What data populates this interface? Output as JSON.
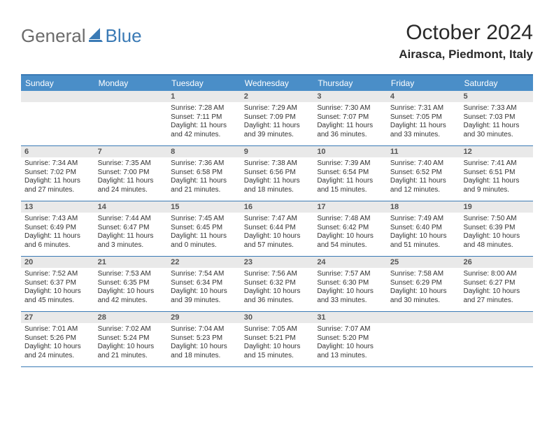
{
  "logo": {
    "text1": "General",
    "text2": "Blue"
  },
  "title": "October 2024",
  "location": "Airasca, Piedmont, Italy",
  "colors": {
    "accent": "#3a7ab5",
    "header_bg": "#4a8ec8",
    "daynum_bg": "#e9e9e9",
    "text": "#333333",
    "logo_gray": "#6b6b6b"
  },
  "day_labels": [
    "Sunday",
    "Monday",
    "Tuesday",
    "Wednesday",
    "Thursday",
    "Friday",
    "Saturday"
  ],
  "weeks": [
    [
      {
        "n": "",
        "sunrise": "",
        "sunset": "",
        "daylight": ""
      },
      {
        "n": "",
        "sunrise": "",
        "sunset": "",
        "daylight": ""
      },
      {
        "n": "1",
        "sunrise": "Sunrise: 7:28 AM",
        "sunset": "Sunset: 7:11 PM",
        "daylight": "Daylight: 11 hours and 42 minutes."
      },
      {
        "n": "2",
        "sunrise": "Sunrise: 7:29 AM",
        "sunset": "Sunset: 7:09 PM",
        "daylight": "Daylight: 11 hours and 39 minutes."
      },
      {
        "n": "3",
        "sunrise": "Sunrise: 7:30 AM",
        "sunset": "Sunset: 7:07 PM",
        "daylight": "Daylight: 11 hours and 36 minutes."
      },
      {
        "n": "4",
        "sunrise": "Sunrise: 7:31 AM",
        "sunset": "Sunset: 7:05 PM",
        "daylight": "Daylight: 11 hours and 33 minutes."
      },
      {
        "n": "5",
        "sunrise": "Sunrise: 7:33 AM",
        "sunset": "Sunset: 7:03 PM",
        "daylight": "Daylight: 11 hours and 30 minutes."
      }
    ],
    [
      {
        "n": "6",
        "sunrise": "Sunrise: 7:34 AM",
        "sunset": "Sunset: 7:02 PM",
        "daylight": "Daylight: 11 hours and 27 minutes."
      },
      {
        "n": "7",
        "sunrise": "Sunrise: 7:35 AM",
        "sunset": "Sunset: 7:00 PM",
        "daylight": "Daylight: 11 hours and 24 minutes."
      },
      {
        "n": "8",
        "sunrise": "Sunrise: 7:36 AM",
        "sunset": "Sunset: 6:58 PM",
        "daylight": "Daylight: 11 hours and 21 minutes."
      },
      {
        "n": "9",
        "sunrise": "Sunrise: 7:38 AM",
        "sunset": "Sunset: 6:56 PM",
        "daylight": "Daylight: 11 hours and 18 minutes."
      },
      {
        "n": "10",
        "sunrise": "Sunrise: 7:39 AM",
        "sunset": "Sunset: 6:54 PM",
        "daylight": "Daylight: 11 hours and 15 minutes."
      },
      {
        "n": "11",
        "sunrise": "Sunrise: 7:40 AM",
        "sunset": "Sunset: 6:52 PM",
        "daylight": "Daylight: 11 hours and 12 minutes."
      },
      {
        "n": "12",
        "sunrise": "Sunrise: 7:41 AM",
        "sunset": "Sunset: 6:51 PM",
        "daylight": "Daylight: 11 hours and 9 minutes."
      }
    ],
    [
      {
        "n": "13",
        "sunrise": "Sunrise: 7:43 AM",
        "sunset": "Sunset: 6:49 PM",
        "daylight": "Daylight: 11 hours and 6 minutes."
      },
      {
        "n": "14",
        "sunrise": "Sunrise: 7:44 AM",
        "sunset": "Sunset: 6:47 PM",
        "daylight": "Daylight: 11 hours and 3 minutes."
      },
      {
        "n": "15",
        "sunrise": "Sunrise: 7:45 AM",
        "sunset": "Sunset: 6:45 PM",
        "daylight": "Daylight: 11 hours and 0 minutes."
      },
      {
        "n": "16",
        "sunrise": "Sunrise: 7:47 AM",
        "sunset": "Sunset: 6:44 PM",
        "daylight": "Daylight: 10 hours and 57 minutes."
      },
      {
        "n": "17",
        "sunrise": "Sunrise: 7:48 AM",
        "sunset": "Sunset: 6:42 PM",
        "daylight": "Daylight: 10 hours and 54 minutes."
      },
      {
        "n": "18",
        "sunrise": "Sunrise: 7:49 AM",
        "sunset": "Sunset: 6:40 PM",
        "daylight": "Daylight: 10 hours and 51 minutes."
      },
      {
        "n": "19",
        "sunrise": "Sunrise: 7:50 AM",
        "sunset": "Sunset: 6:39 PM",
        "daylight": "Daylight: 10 hours and 48 minutes."
      }
    ],
    [
      {
        "n": "20",
        "sunrise": "Sunrise: 7:52 AM",
        "sunset": "Sunset: 6:37 PM",
        "daylight": "Daylight: 10 hours and 45 minutes."
      },
      {
        "n": "21",
        "sunrise": "Sunrise: 7:53 AM",
        "sunset": "Sunset: 6:35 PM",
        "daylight": "Daylight: 10 hours and 42 minutes."
      },
      {
        "n": "22",
        "sunrise": "Sunrise: 7:54 AM",
        "sunset": "Sunset: 6:34 PM",
        "daylight": "Daylight: 10 hours and 39 minutes."
      },
      {
        "n": "23",
        "sunrise": "Sunrise: 7:56 AM",
        "sunset": "Sunset: 6:32 PM",
        "daylight": "Daylight: 10 hours and 36 minutes."
      },
      {
        "n": "24",
        "sunrise": "Sunrise: 7:57 AM",
        "sunset": "Sunset: 6:30 PM",
        "daylight": "Daylight: 10 hours and 33 minutes."
      },
      {
        "n": "25",
        "sunrise": "Sunrise: 7:58 AM",
        "sunset": "Sunset: 6:29 PM",
        "daylight": "Daylight: 10 hours and 30 minutes."
      },
      {
        "n": "26",
        "sunrise": "Sunrise: 8:00 AM",
        "sunset": "Sunset: 6:27 PM",
        "daylight": "Daylight: 10 hours and 27 minutes."
      }
    ],
    [
      {
        "n": "27",
        "sunrise": "Sunrise: 7:01 AM",
        "sunset": "Sunset: 5:26 PM",
        "daylight": "Daylight: 10 hours and 24 minutes."
      },
      {
        "n": "28",
        "sunrise": "Sunrise: 7:02 AM",
        "sunset": "Sunset: 5:24 PM",
        "daylight": "Daylight: 10 hours and 21 minutes."
      },
      {
        "n": "29",
        "sunrise": "Sunrise: 7:04 AM",
        "sunset": "Sunset: 5:23 PM",
        "daylight": "Daylight: 10 hours and 18 minutes."
      },
      {
        "n": "30",
        "sunrise": "Sunrise: 7:05 AM",
        "sunset": "Sunset: 5:21 PM",
        "daylight": "Daylight: 10 hours and 15 minutes."
      },
      {
        "n": "31",
        "sunrise": "Sunrise: 7:07 AM",
        "sunset": "Sunset: 5:20 PM",
        "daylight": "Daylight: 10 hours and 13 minutes."
      },
      {
        "n": "",
        "sunrise": "",
        "sunset": "",
        "daylight": ""
      },
      {
        "n": "",
        "sunrise": "",
        "sunset": "",
        "daylight": ""
      }
    ]
  ]
}
